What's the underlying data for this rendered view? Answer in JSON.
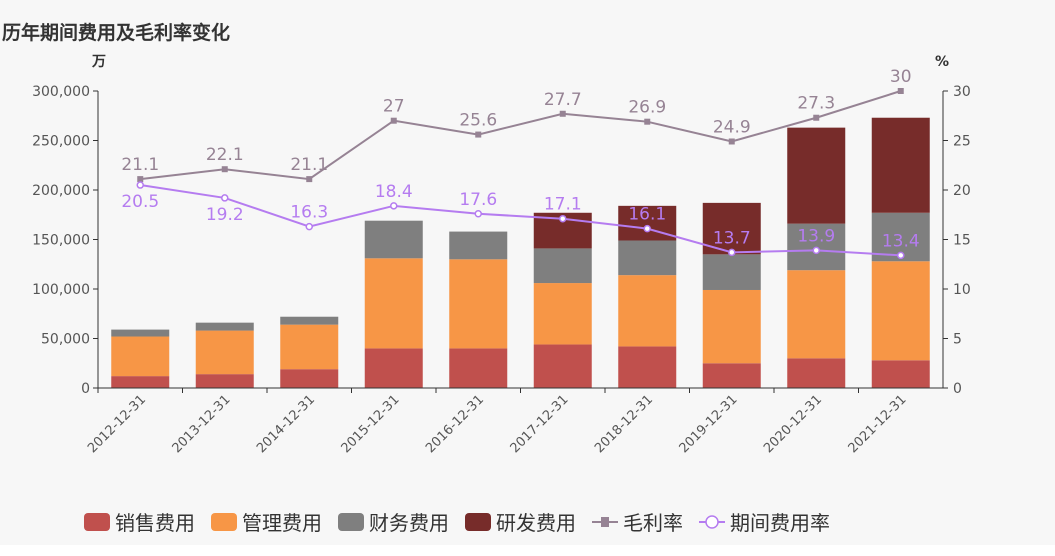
{
  "title": "历年期间费用及毛利率变化",
  "chart_data": {
    "type": "bar",
    "title": "历年期间费用及毛利率变化",
    "ylabel_left": "万",
    "ylabel_right": "%",
    "ylim_left": [
      0,
      300000
    ],
    "ylim_right": [
      0,
      30
    ],
    "yticks_left": [
      "0",
      "50,000",
      "100,000",
      "150,000",
      "200,000",
      "250,000",
      "300,000"
    ],
    "yticks_right": [
      "0",
      "5",
      "10",
      "15",
      "20",
      "25",
      "30"
    ],
    "categories": [
      "2012-12-31",
      "2013-12-31",
      "2014-12-31",
      "2015-12-31",
      "2016-12-31",
      "2017-12-31",
      "2018-12-31",
      "2019-12-31",
      "2020-12-31",
      "2021-12-31"
    ],
    "stacked": true,
    "series": [
      {
        "name": "销售费用",
        "type": "bar",
        "color": "#c0504d",
        "values": [
          12000,
          14000,
          19000,
          40000,
          40000,
          44000,
          42000,
          25000,
          30000,
          28000
        ]
      },
      {
        "name": "管理费用",
        "type": "bar",
        "color": "#f79646",
        "values": [
          40000,
          44000,
          45000,
          91000,
          90000,
          62000,
          72000,
          74000,
          89000,
          100000
        ]
      },
      {
        "name": "财务费用",
        "type": "bar",
        "color": "#7f7f7f",
        "values": [
          7000,
          8000,
          8000,
          38000,
          28000,
          35000,
          35000,
          36000,
          47000,
          49000
        ]
      },
      {
        "name": "研发费用",
        "type": "bar",
        "color": "#772c2a",
        "values": [
          0,
          0,
          0,
          0,
          0,
          36000,
          35000,
          52000,
          97000,
          96000
        ]
      },
      {
        "name": "毛利率",
        "type": "line",
        "axis": "right",
        "color": "#968394",
        "values": [
          21.1,
          22.1,
          21.1,
          27,
          25.6,
          27.7,
          26.9,
          24.9,
          27.3,
          30
        ]
      },
      {
        "name": "期间费用率",
        "type": "line",
        "axis": "right",
        "color": "#b57cf0",
        "values": [
          20.5,
          19.2,
          16.3,
          18.4,
          17.6,
          17.1,
          16.1,
          13.7,
          13.9,
          13.4
        ]
      }
    ],
    "legend": "bottom"
  }
}
